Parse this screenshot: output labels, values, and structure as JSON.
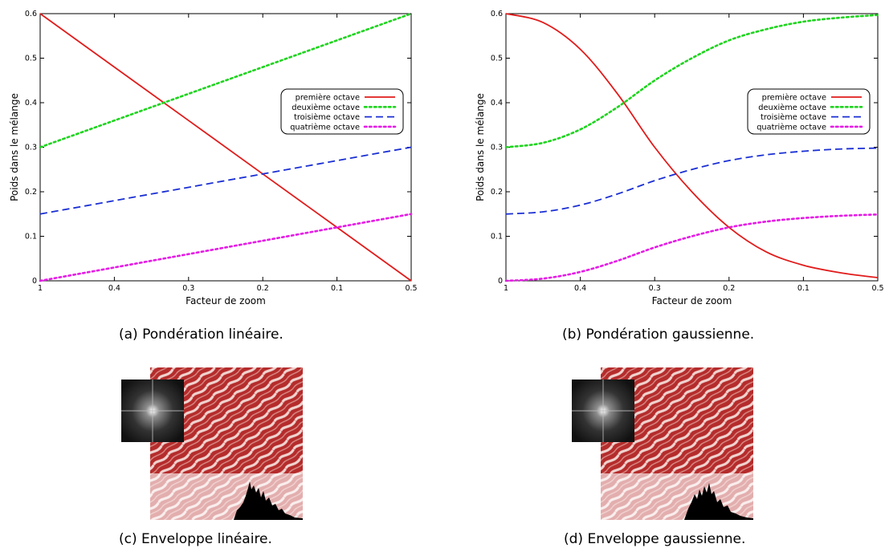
{
  "chart_data": [
    {
      "type": "line",
      "id": "a",
      "xlabel": "Facteur de zoom",
      "ylabel": "Poids dans le mélange",
      "x_ticks": [
        "1",
        "0.4",
        "0.3",
        "0.2",
        "0.1",
        "0.5"
      ],
      "y_ticks": [
        "0",
        "0.1",
        "0.2",
        "0.3",
        "0.4",
        "0.5",
        "0.6"
      ],
      "ylim": [
        0,
        0.6
      ],
      "legend_position": "top-right",
      "x": [
        0,
        0.2,
        0.4,
        0.6,
        0.8,
        1
      ],
      "series": [
        {
          "name": "première octave",
          "color": "#e11b1b",
          "dash": "solid",
          "values": [
            0.6,
            0.48,
            0.36,
            0.24,
            0.12,
            0.0
          ]
        },
        {
          "name": "deuxième octave",
          "color": "#1fd41f",
          "dash": "dotted",
          "values": [
            0.3,
            0.36,
            0.42,
            0.48,
            0.54,
            0.6
          ]
        },
        {
          "name": "troisième octave",
          "color": "#1a2fd4",
          "dash": "dashed",
          "values": [
            0.15,
            0.18,
            0.21,
            0.24,
            0.27,
            0.3
          ]
        },
        {
          "name": "quatrième octave",
          "color": "#e51be5",
          "dash": "dotted",
          "values": [
            0.0,
            0.03,
            0.06,
            0.09,
            0.12,
            0.15
          ]
        }
      ]
    },
    {
      "type": "line",
      "id": "b",
      "xlabel": "Facteur de zoom",
      "ylabel": "Poids dans le mélange",
      "x_ticks": [
        "1",
        "0.4",
        "0.3",
        "0.2",
        "0.1",
        "0.5"
      ],
      "y_ticks": [
        "0",
        "0.1",
        "0.2",
        "0.3",
        "0.4",
        "0.5",
        "0.6"
      ],
      "ylim": [
        0,
        0.6
      ],
      "legend_position": "top-right",
      "x": [
        0,
        0.1,
        0.2,
        0.3,
        0.4,
        0.5,
        0.6,
        0.7,
        0.8,
        0.9,
        1
      ],
      "series": [
        {
          "name": "première octave",
          "color": "#e11b1b",
          "dash": "solid",
          "values": [
            0.6,
            0.58,
            0.52,
            0.42,
            0.3,
            0.2,
            0.12,
            0.065,
            0.035,
            0.018,
            0.007
          ]
        },
        {
          "name": "deuxième octave",
          "color": "#1fd41f",
          "dash": "dotted",
          "values": [
            0.3,
            0.31,
            0.34,
            0.39,
            0.45,
            0.5,
            0.54,
            0.565,
            0.582,
            0.591,
            0.597
          ]
        },
        {
          "name": "troisième octave",
          "color": "#1a2fd4",
          "dash": "dashed",
          "values": [
            0.15,
            0.155,
            0.17,
            0.195,
            0.225,
            0.25,
            0.27,
            0.283,
            0.291,
            0.296,
            0.298
          ]
        },
        {
          "name": "quatrième octave",
          "color": "#e51be5",
          "dash": "dotted",
          "values": [
            0.0,
            0.005,
            0.02,
            0.045,
            0.075,
            0.1,
            0.12,
            0.133,
            0.141,
            0.146,
            0.149
          ]
        }
      ]
    }
  ],
  "captions": {
    "a": "(a)  Pondération linéaire.",
    "b": "(b)  Pondération gaussienne.",
    "c": "(c)  Enveloppe linéaire.",
    "d": "(d)  Enveloppe gaussienne."
  }
}
